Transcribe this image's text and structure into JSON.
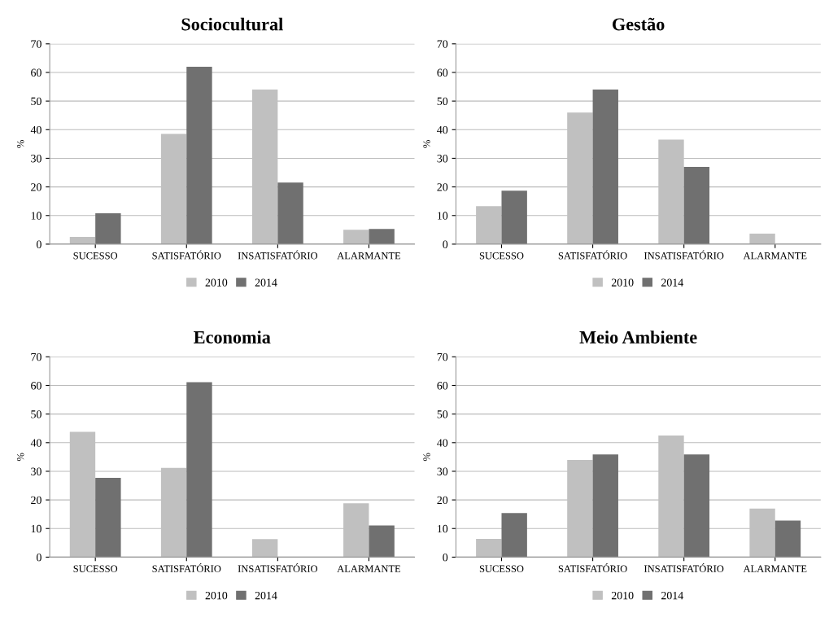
{
  "chart_data": [
    {
      "type": "bar",
      "title": "Sociocultural",
      "ylabel": "%",
      "categories": [
        "SUCESSO",
        "SATISFATÓRIO",
        "INSATISFATÓRIO",
        "ALARMANTE"
      ],
      "ylim": [
        0,
        70
      ],
      "yticks": [
        0,
        10,
        20,
        30,
        40,
        50,
        60,
        70
      ],
      "grid": "y",
      "legend": "bottom",
      "series": [
        {
          "name": "2010",
          "color": "#c0c0c0",
          "values": [
            2.5,
            38.5,
            54,
            5
          ]
        },
        {
          "name": "2014",
          "color": "#707070",
          "values": [
            10.8,
            62,
            21.5,
            5.3
          ]
        }
      ]
    },
    {
      "type": "bar",
      "title": "Gestão",
      "ylabel": "%",
      "categories": [
        "SUCESSO",
        "SATISFATÓRIO",
        "INSATISFATÓRIO",
        "ALARMANTE"
      ],
      "ylim": [
        0,
        70
      ],
      "yticks": [
        0,
        10,
        20,
        30,
        40,
        50,
        60,
        70
      ],
      "grid": "y",
      "legend": "bottom",
      "series": [
        {
          "name": "2010",
          "color": "#c0c0c0",
          "values": [
            13.3,
            46,
            36.5,
            3.7
          ]
        },
        {
          "name": "2014",
          "color": "#707070",
          "values": [
            18.7,
            54,
            27,
            0
          ]
        }
      ]
    },
    {
      "type": "bar",
      "title": "Economia",
      "ylabel": "%",
      "categories": [
        "SUCESSO",
        "SATISFATÓRIO",
        "INSATISFATÓRIO",
        "ALARMANTE"
      ],
      "ylim": [
        0,
        70
      ],
      "yticks": [
        0,
        10,
        20,
        30,
        40,
        50,
        60,
        70
      ],
      "grid": "y",
      "legend": "bottom",
      "series": [
        {
          "name": "2010",
          "color": "#c0c0c0",
          "values": [
            43.8,
            31.2,
            6.3,
            18.8
          ]
        },
        {
          "name": "2014",
          "color": "#707070",
          "values": [
            27.7,
            61.1,
            0,
            11.1
          ]
        }
      ]
    },
    {
      "type": "bar",
      "title": "Meio Ambiente",
      "ylabel": "%",
      "categories": [
        "SUCESSO",
        "SATISFATÓRIO",
        "INSATISFATÓRIO",
        "ALARMANTE"
      ],
      "ylim": [
        0,
        70
      ],
      "yticks": [
        0,
        10,
        20,
        30,
        40,
        50,
        60,
        70
      ],
      "grid": "y",
      "legend": "bottom",
      "series": [
        {
          "name": "2010",
          "color": "#c0c0c0",
          "values": [
            6.4,
            34,
            42.5,
            17
          ]
        },
        {
          "name": "2014",
          "color": "#707070",
          "values": [
            15.4,
            35.9,
            35.9,
            12.8
          ]
        }
      ]
    }
  ]
}
